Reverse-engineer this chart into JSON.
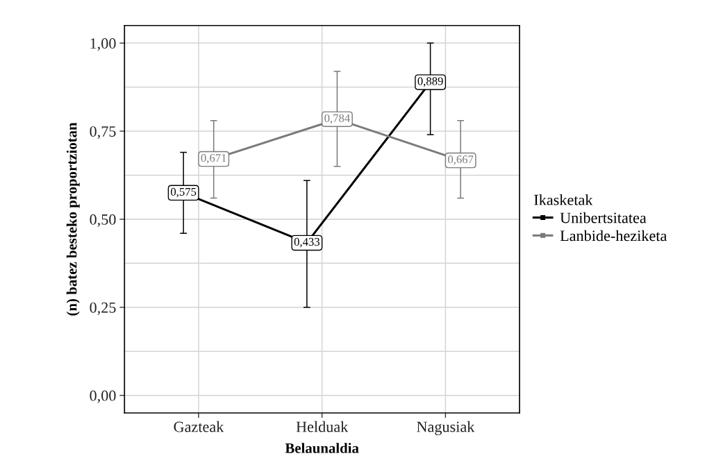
{
  "chart_data": {
    "type": "line",
    "xlabel": "Belaunaldia",
    "ylabel": "(n) batez besteko proportziotan",
    "legend_title": "Ikasketak",
    "categories": [
      "Gazteak",
      "Helduak",
      "Nagusiak"
    ],
    "series": [
      {
        "name": "Unibertsitatea",
        "color": "#000000",
        "values": [
          0.575,
          0.433,
          0.889
        ],
        "value_labels": [
          "0,575",
          "0,433",
          "0,889"
        ],
        "errors": [
          [
            0.46,
            0.69
          ],
          [
            0.25,
            0.61
          ],
          [
            0.74,
            1.0
          ]
        ]
      },
      {
        "name": "Lanbide-heziketa",
        "color": "#7a7a7a",
        "values": [
          0.671,
          0.784,
          0.667
        ],
        "value_labels": [
          "0,671",
          "0,784",
          "0,667"
        ],
        "errors": [
          [
            0.56,
            0.78
          ],
          [
            0.65,
            0.92
          ],
          [
            0.56,
            0.78
          ]
        ]
      }
    ],
    "ylim": [
      -0.05,
      1.05
    ],
    "yticks": [
      {
        "value": 0,
        "label": "0,00"
      },
      {
        "value": 0.25,
        "label": "0,25"
      },
      {
        "value": 0.5,
        "label": "0,50"
      },
      {
        "value": 0.75,
        "label": "0,75"
      },
      {
        "value": 1,
        "label": "1,00"
      }
    ],
    "grid": true,
    "legend": "right",
    "marker": "square",
    "line_style": "solid"
  }
}
